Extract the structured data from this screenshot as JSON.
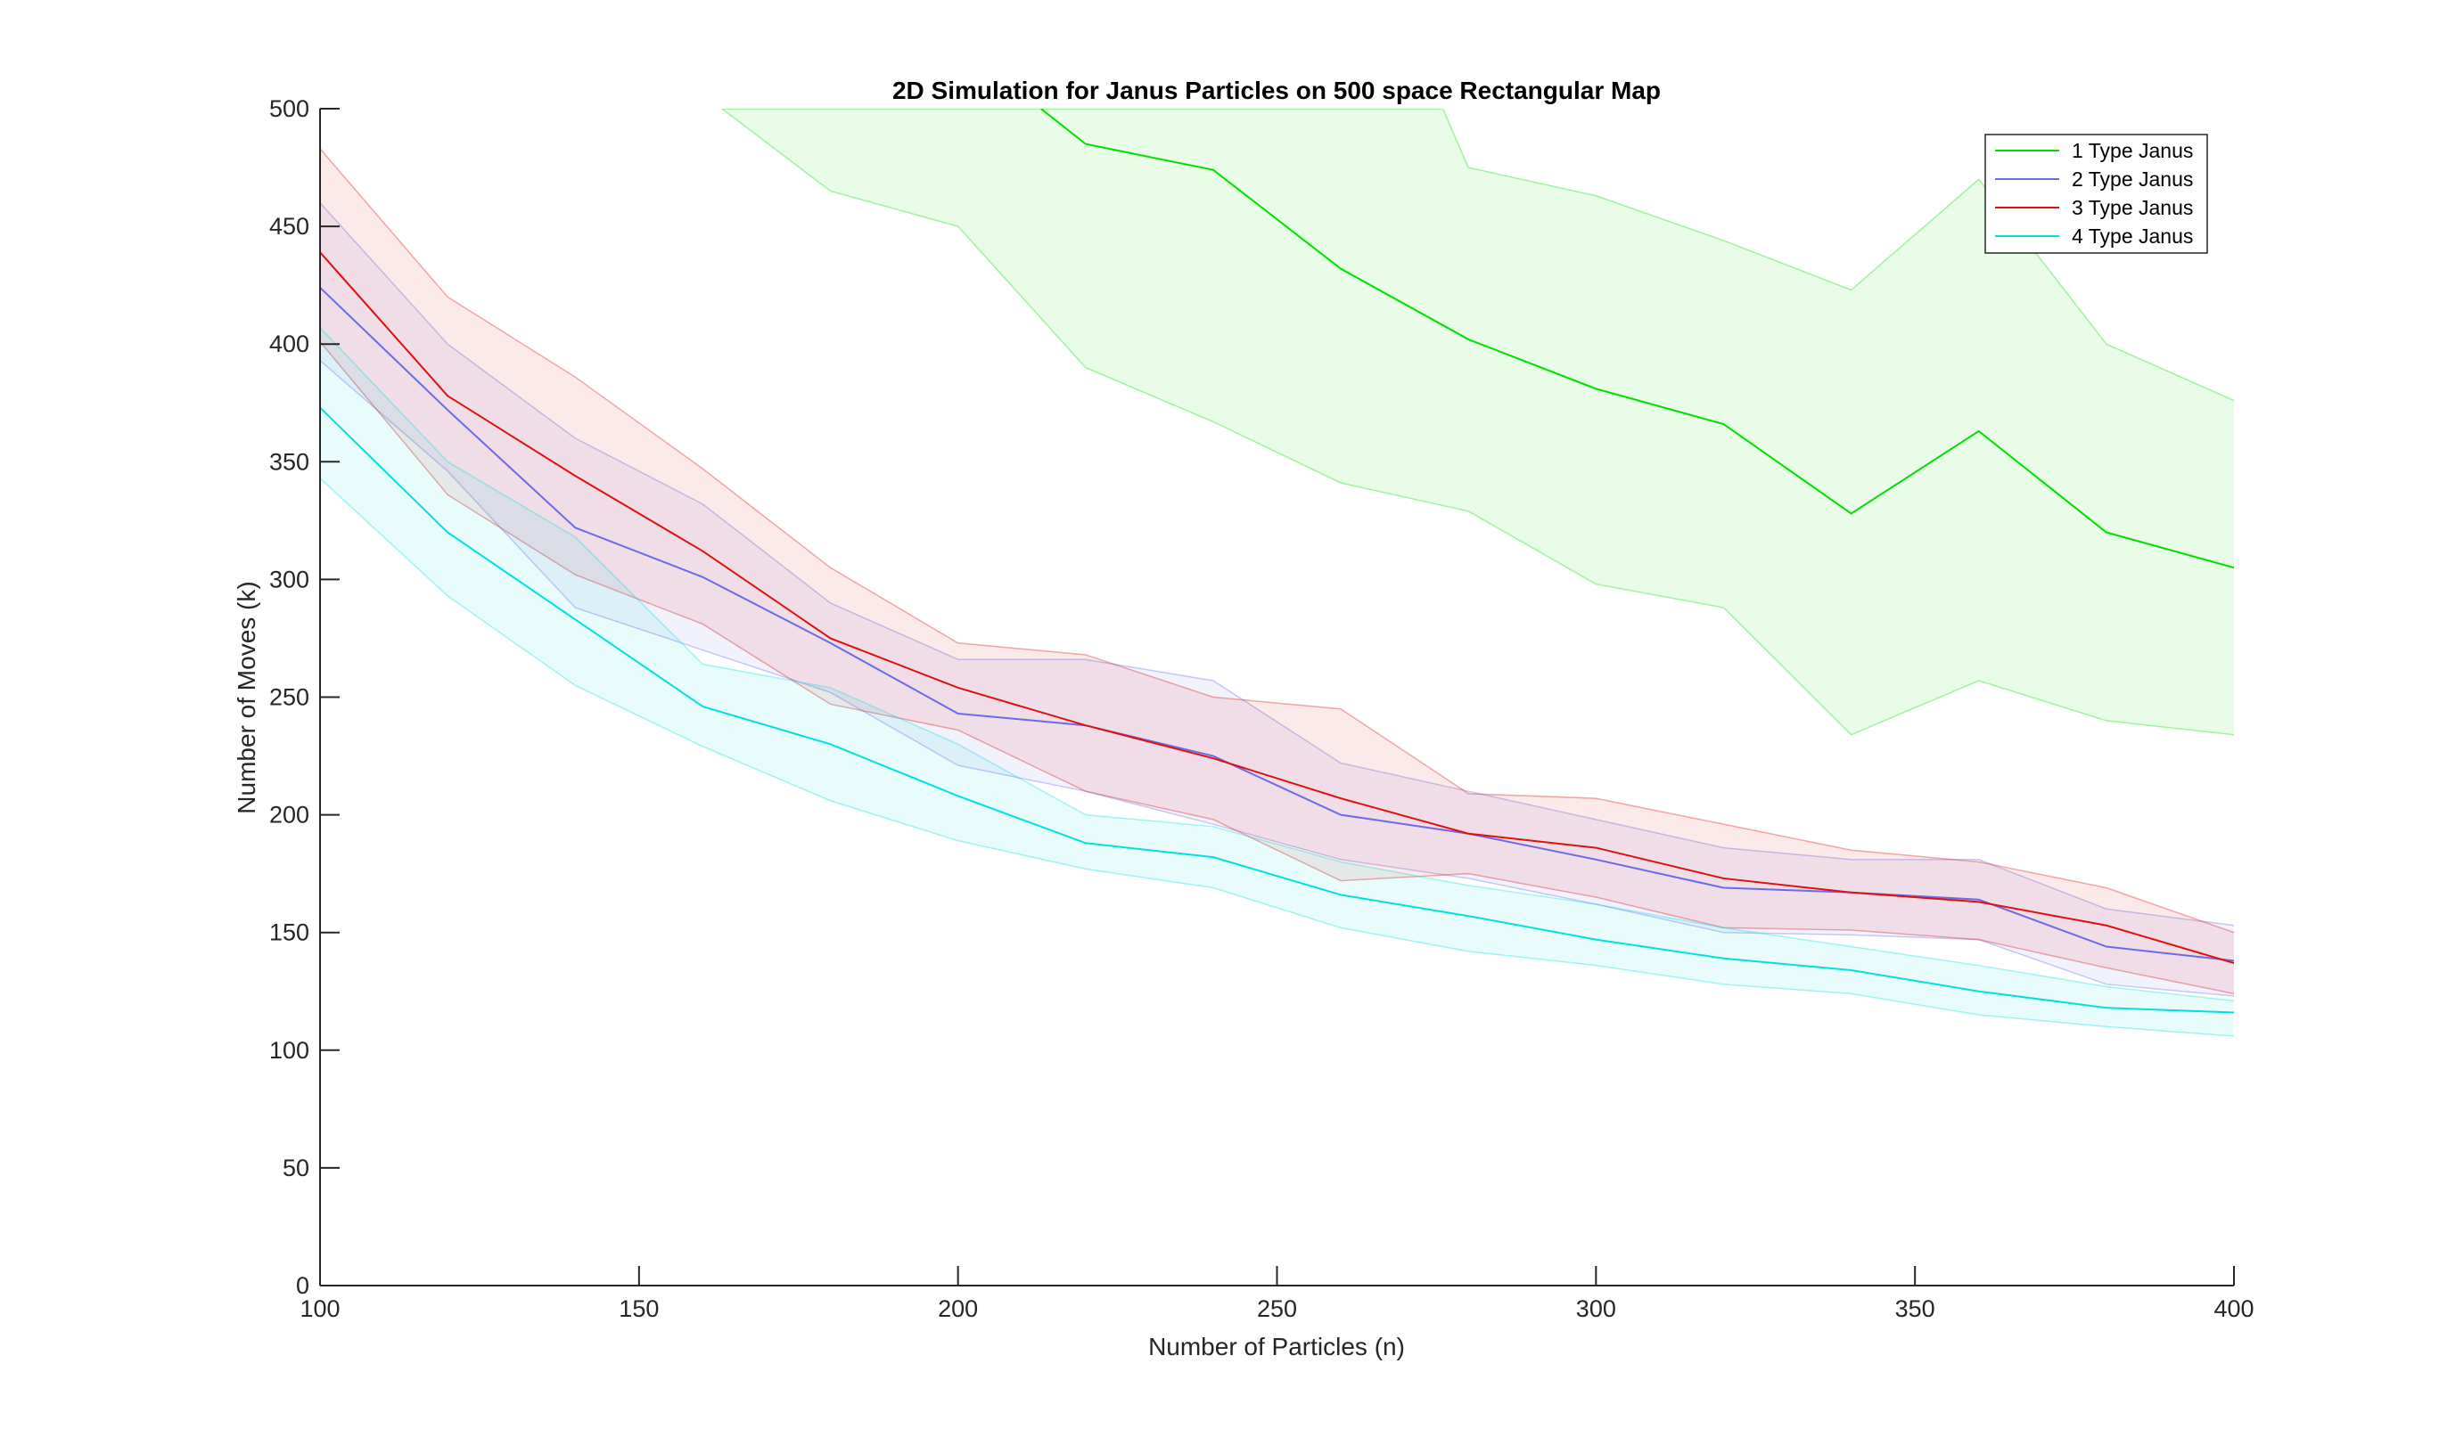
{
  "chart_data": {
    "type": "line",
    "title": "2D Simulation for Janus Particles on 500 space Rectangular Map",
    "xlabel": "Number of Particles (n)",
    "ylabel": "Number of Moves (k)",
    "xlim": [
      100,
      400
    ],
    "ylim": [
      0,
      500
    ],
    "xticks": [
      100,
      150,
      200,
      250,
      300,
      350,
      400
    ],
    "yticks": [
      0,
      50,
      100,
      150,
      200,
      250,
      300,
      350,
      400,
      450,
      500
    ],
    "grid": false,
    "legend_position": "top-right",
    "x": [
      100,
      120,
      140,
      160,
      180,
      200,
      220,
      240,
      260,
      280,
      300,
      320,
      340,
      360,
      380,
      400
    ],
    "series": [
      {
        "name": "1 Type Janus",
        "color": "#00e000",
        "values": [
          null,
          null,
          null,
          null,
          null,
          null,
          485,
          474,
          432,
          402,
          381,
          366,
          328,
          363,
          320,
          305
        ],
        "upper": [
          null,
          null,
          null,
          null,
          null,
          null,
          null,
          null,
          null,
          475,
          463,
          444,
          423,
          470,
          400,
          376
        ],
        "lower": [
          null,
          null,
          null,
          null,
          465,
          450,
          390,
          367,
          341,
          329,
          298,
          288,
          234,
          257,
          240,
          234
        ],
        "band_anchor_x": [
          [
            163,
            500
          ],
          [
            276,
            500
          ]
        ]
      },
      {
        "name": "2 Type Janus",
        "color": "#6a6ae8",
        "values": [
          424,
          372,
          322,
          301,
          273,
          243,
          238,
          225,
          200,
          192,
          181,
          169,
          167,
          164,
          144,
          138
        ],
        "upper": [
          460,
          400,
          360,
          332,
          290,
          266,
          266,
          257,
          222,
          210,
          198,
          186,
          181,
          181,
          160,
          153
        ],
        "lower": [
          393,
          346,
          288,
          270,
          252,
          221,
          210,
          196,
          181,
          173,
          162,
          150,
          149,
          147,
          128,
          123
        ]
      },
      {
        "name": "3 Type Janus",
        "color": "#e01010",
        "values": [
          439,
          378,
          344,
          312,
          275,
          254,
          238,
          224,
          207,
          192,
          186,
          173,
          167,
          163,
          153,
          137
        ],
        "upper": [
          483,
          420,
          386,
          347,
          305,
          273,
          268,
          250,
          245,
          209,
          207,
          196,
          185,
          180,
          169,
          150
        ],
        "lower": [
          401,
          336,
          302,
          281,
          247,
          236,
          210,
          198,
          172,
          175,
          165,
          152,
          151,
          147,
          135,
          124
        ]
      },
      {
        "name": "4 Type Janus",
        "color": "#00e0e0",
        "values": [
          373,
          320,
          283,
          246,
          230,
          208,
          188,
          182,
          166,
          157,
          147,
          139,
          134,
          125,
          118,
          116
        ],
        "upper": [
          407,
          350,
          318,
          264,
          254,
          230,
          200,
          195,
          180,
          170,
          162,
          152,
          144,
          136,
          127,
          121
        ],
        "lower": [
          343,
          293,
          255,
          229,
          206,
          189,
          177,
          169,
          152,
          142,
          136,
          128,
          124,
          115,
          110,
          106
        ]
      }
    ]
  }
}
